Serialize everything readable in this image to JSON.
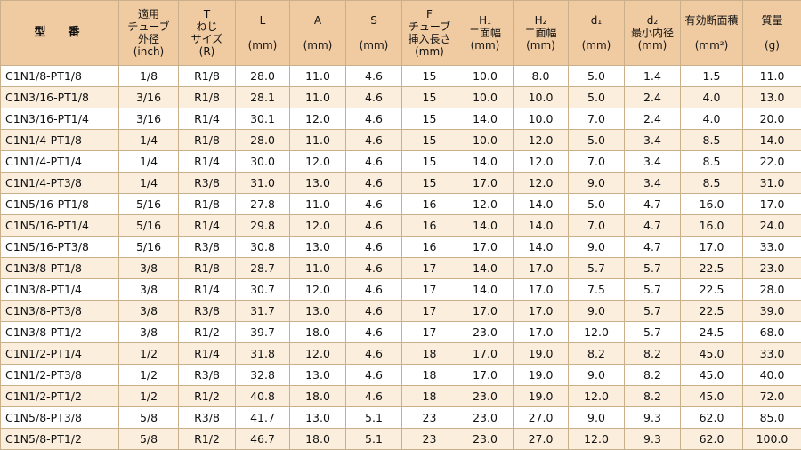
{
  "headers": [
    {
      "key": "model",
      "lines": [
        "型　番"
      ]
    },
    {
      "key": "size",
      "lines": [
        "適用",
        "チューブ",
        "外径",
        "(inch)"
      ]
    },
    {
      "key": "thread",
      "lines": [
        "T",
        "ねじ",
        "サイズ",
        "(R)"
      ]
    },
    {
      "key": "L",
      "lines": [
        "L",
        "",
        "(mm)"
      ]
    },
    {
      "key": "A",
      "lines": [
        "A",
        "",
        "(mm)"
      ]
    },
    {
      "key": "S",
      "lines": [
        "S",
        "",
        "(mm)"
      ]
    },
    {
      "key": "F",
      "lines": [
        "F",
        "チューブ",
        "挿入長さ",
        "(mm)"
      ]
    },
    {
      "key": "H1",
      "lines": [
        "H₁",
        "二面幅",
        "(mm)"
      ]
    },
    {
      "key": "H2",
      "lines": [
        "H₂",
        "二面幅",
        "(mm)"
      ]
    },
    {
      "key": "d1",
      "lines": [
        "d₁",
        "",
        "(mm)"
      ]
    },
    {
      "key": "d2",
      "lines": [
        "d₂",
        "最小内径",
        "(mm)"
      ]
    },
    {
      "key": "area",
      "lines": [
        "有効断面積",
        "",
        "(mm²)"
      ]
    },
    {
      "key": "mass",
      "lines": [
        "質量",
        "",
        "(g)"
      ]
    }
  ],
  "rows": [
    [
      "C1N1/8-PT1/8",
      "1/8",
      "R1/8",
      "28.0",
      "11.0",
      "4.6",
      "15",
      "10.0",
      "8.0",
      "5.0",
      "1.4",
      "1.5",
      "11.0"
    ],
    [
      "C1N3/16-PT1/8",
      "3/16",
      "R1/8",
      "28.1",
      "11.0",
      "4.6",
      "15",
      "10.0",
      "10.0",
      "5.0",
      "2.4",
      "4.0",
      "13.0"
    ],
    [
      "C1N3/16-PT1/4",
      "3/16",
      "R1/4",
      "30.1",
      "12.0",
      "4.6",
      "15",
      "14.0",
      "10.0",
      "7.0",
      "2.4",
      "4.0",
      "20.0"
    ],
    [
      "C1N1/4-PT1/8",
      "1/4",
      "R1/8",
      "28.0",
      "11.0",
      "4.6",
      "15",
      "10.0",
      "12.0",
      "5.0",
      "3.4",
      "8.5",
      "14.0"
    ],
    [
      "C1N1/4-PT1/4",
      "1/4",
      "R1/4",
      "30.0",
      "12.0",
      "4.6",
      "15",
      "14.0",
      "12.0",
      "7.0",
      "3.4",
      "8.5",
      "22.0"
    ],
    [
      "C1N1/4-PT3/8",
      "1/4",
      "R3/8",
      "31.0",
      "13.0",
      "4.6",
      "15",
      "17.0",
      "12.0",
      "9.0",
      "3.4",
      "8.5",
      "31.0"
    ],
    [
      "C1N5/16-PT1/8",
      "5/16",
      "R1/8",
      "27.8",
      "11.0",
      "4.6",
      "16",
      "12.0",
      "14.0",
      "5.0",
      "4.7",
      "16.0",
      "17.0"
    ],
    [
      "C1N5/16-PT1/4",
      "5/16",
      "R1/4",
      "29.8",
      "12.0",
      "4.6",
      "16",
      "14.0",
      "14.0",
      "7.0",
      "4.7",
      "16.0",
      "24.0"
    ],
    [
      "C1N5/16-PT3/8",
      "5/16",
      "R3/8",
      "30.8",
      "13.0",
      "4.6",
      "16",
      "17.0",
      "14.0",
      "9.0",
      "4.7",
      "17.0",
      "33.0"
    ],
    [
      "C1N3/8-PT1/8",
      "3/8",
      "R1/8",
      "28.7",
      "11.0",
      "4.6",
      "17",
      "14.0",
      "17.0",
      "5.7",
      "5.7",
      "22.5",
      "23.0"
    ],
    [
      "C1N3/8-PT1/4",
      "3/8",
      "R1/4",
      "30.7",
      "12.0",
      "4.6",
      "17",
      "14.0",
      "17.0",
      "7.5",
      "5.7",
      "22.5",
      "28.0"
    ],
    [
      "C1N3/8-PT3/8",
      "3/8",
      "R3/8",
      "31.7",
      "13.0",
      "4.6",
      "17",
      "17.0",
      "17.0",
      "9.0",
      "5.7",
      "22.5",
      "39.0"
    ],
    [
      "C1N3/8-PT1/2",
      "3/8",
      "R1/2",
      "39.7",
      "18.0",
      "4.6",
      "17",
      "23.0",
      "17.0",
      "12.0",
      "5.7",
      "24.5",
      "68.0"
    ],
    [
      "C1N1/2-PT1/4",
      "1/2",
      "R1/4",
      "31.8",
      "12.0",
      "4.6",
      "18",
      "17.0",
      "19.0",
      "8.2",
      "8.2",
      "45.0",
      "33.0"
    ],
    [
      "C1N1/2-PT3/8",
      "1/2",
      "R3/8",
      "32.8",
      "13.0",
      "4.6",
      "18",
      "17.0",
      "19.0",
      "9.0",
      "8.2",
      "45.0",
      "40.0"
    ],
    [
      "C1N1/2-PT1/2",
      "1/2",
      "R1/2",
      "40.8",
      "18.0",
      "4.6",
      "18",
      "23.0",
      "19.0",
      "12.0",
      "8.2",
      "45.0",
      "72.0"
    ],
    [
      "C1N5/8-PT3/8",
      "5/8",
      "R3/8",
      "41.7",
      "13.0",
      "5.1",
      "23",
      "23.0",
      "27.0",
      "9.0",
      "9.3",
      "62.0",
      "85.0"
    ],
    [
      "C1N5/8-PT1/2",
      "5/8",
      "R1/2",
      "46.7",
      "18.0",
      "5.1",
      "23",
      "23.0",
      "27.0",
      "12.0",
      "9.3",
      "62.0",
      "100.0"
    ]
  ]
}
